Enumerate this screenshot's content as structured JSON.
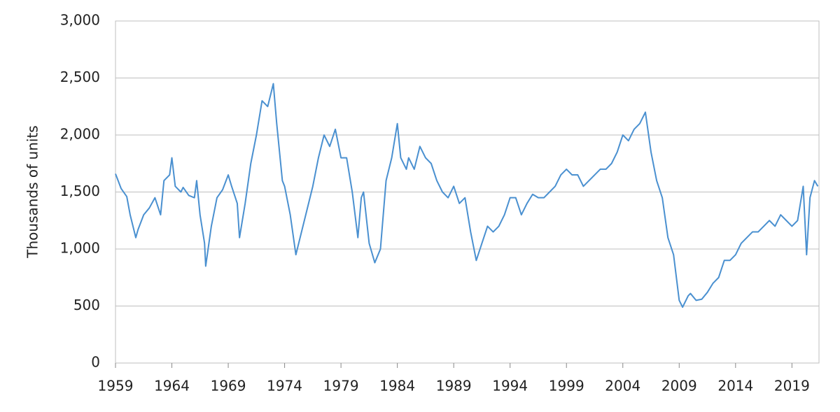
{
  "chart_data": {
    "type": "line",
    "y_label": "Thousands of units",
    "color": "#4a90d0",
    "grid": true,
    "x": [
      1959.0,
      1959.5,
      1960.0,
      1960.3,
      1960.8,
      1961.0,
      1961.5,
      1962.0,
      1962.5,
      1963.0,
      1963.3,
      1963.8,
      1964.0,
      1964.3,
      1964.8,
      1965.0,
      1965.5,
      1966.0,
      1966.2,
      1966.5,
      1966.9,
      1967.0,
      1967.5,
      1968.0,
      1968.5,
      1969.0,
      1969.3,
      1969.8,
      1970.0,
      1970.5,
      1971.0,
      1971.5,
      1972.0,
      1972.5,
      1973.0,
      1973.3,
      1973.8,
      1974.0,
      1974.5,
      1975.0,
      1975.5,
      1976.0,
      1976.5,
      1977.0,
      1977.5,
      1978.0,
      1978.5,
      1979.0,
      1979.5,
      1980.0,
      1980.5,
      1980.8,
      1981.0,
      1981.5,
      1982.0,
      1982.5,
      1983.0,
      1983.5,
      1984.0,
      1984.3,
      1984.8,
      1985.0,
      1985.5,
      1986.0,
      1986.5,
      1987.0,
      1987.5,
      1988.0,
      1988.5,
      1989.0,
      1989.5,
      1990.0,
      1990.5,
      1991.0,
      1991.5,
      1992.0,
      1992.5,
      1993.0,
      1993.5,
      1994.0,
      1994.5,
      1995.0,
      1995.5,
      1996.0,
      1996.5,
      1997.0,
      1997.5,
      1998.0,
      1998.5,
      1999.0,
      1999.5,
      2000.0,
      2000.5,
      2001.0,
      2001.5,
      2002.0,
      2002.5,
      2003.0,
      2003.5,
      2004.0,
      2004.5,
      2005.0,
      2005.5,
      2006.0,
      2006.5,
      2007.0,
      2007.5,
      2008.0,
      2008.5,
      2009.0,
      2009.3,
      2009.8,
      2010.0,
      2010.5,
      2011.0,
      2011.5,
      2012.0,
      2012.5,
      2013.0,
      2013.5,
      2014.0,
      2014.5,
      2015.0,
      2015.5,
      2016.0,
      2016.5,
      2017.0,
      2017.5,
      2018.0,
      2018.5,
      2019.0,
      2019.5,
      2020.0,
      2020.3,
      2020.6,
      2021.0,
      2021.3
    ],
    "values": [
      1660,
      1530,
      1460,
      1300,
      1100,
      1170,
      1300,
      1360,
      1450,
      1300,
      1600,
      1650,
      1800,
      1550,
      1500,
      1540,
      1470,
      1450,
      1600,
      1300,
      1050,
      850,
      1200,
      1450,
      1520,
      1650,
      1550,
      1400,
      1100,
      1400,
      1750,
      2000,
      2300,
      2250,
      2450,
      2100,
      1600,
      1550,
      1300,
      950,
      1150,
      1350,
      1550,
      1800,
      2000,
      1900,
      2050,
      1800,
      1800,
      1500,
      1100,
      1450,
      1500,
      1050,
      880,
      1000,
      1600,
      1800,
      2100,
      1800,
      1700,
      1800,
      1700,
      1900,
      1800,
      1750,
      1600,
      1500,
      1450,
      1550,
      1400,
      1450,
      1150,
      900,
      1050,
      1200,
      1150,
      1200,
      1300,
      1450,
      1450,
      1300,
      1400,
      1480,
      1450,
      1450,
      1500,
      1550,
      1650,
      1700,
      1650,
      1650,
      1550,
      1600,
      1650,
      1700,
      1700,
      1750,
      1850,
      2000,
      1950,
      2050,
      2100,
      2200,
      1850,
      1600,
      1450,
      1100,
      950,
      550,
      490,
      590,
      610,
      550,
      560,
      620,
      700,
      750,
      900,
      900,
      950,
      1050,
      1100,
      1150,
      1150,
      1200,
      1250,
      1200,
      1300,
      1250,
      1200,
      1250,
      1550,
      950,
      1450,
      1600,
      1550
    ],
    "xlim": [
      1959,
      2021.4
    ],
    "xticks": [
      1959,
      1964,
      1969,
      1974,
      1979,
      1984,
      1989,
      1994,
      1999,
      2004,
      2009,
      2014,
      2019
    ],
    "ylim": [
      0,
      3000
    ],
    "yticks": [
      0,
      500,
      {
        "value": 1000,
        "label": "1,000"
      },
      {
        "value": 1500,
        "label": "1,500"
      },
      {
        "value": 2000,
        "label": "2,000"
      },
      {
        "value": 2500,
        "label": "2,500"
      },
      {
        "value": 3000,
        "label": "3,000"
      }
    ]
  }
}
